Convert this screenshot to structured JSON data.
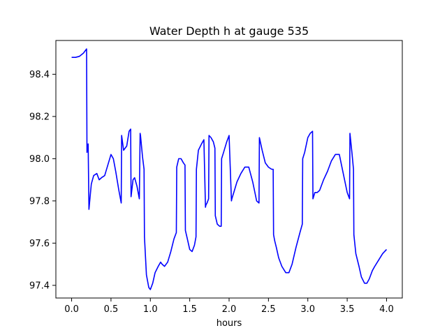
{
  "chart_data": {
    "type": "line",
    "title": "Water Depth h at gauge 535",
    "xlabel": "hours",
    "ylabel": "",
    "xlim": [
      -0.2,
      4.2
    ],
    "ylim": [
      97.34,
      98.56
    ],
    "xticks": [
      0.0,
      0.5,
      1.0,
      1.5,
      2.0,
      2.5,
      3.0,
      3.5,
      4.0
    ],
    "xtick_labels": [
      "0.0",
      "0.5",
      "1.0",
      "1.5",
      "2.0",
      "2.5",
      "3.0",
      "3.5",
      "4.0"
    ],
    "yticks": [
      97.4,
      97.6,
      97.8,
      98.0,
      98.2,
      98.4
    ],
    "ytick_labels": [
      "97.4",
      "97.6",
      "97.8",
      "98.0",
      "98.2",
      "98.4"
    ],
    "grid": false,
    "legend": "none",
    "series": [
      {
        "color": "#0000ff",
        "x": [
          0.0,
          0.05,
          0.1,
          0.15,
          0.19,
          0.195,
          0.2,
          0.21,
          0.22,
          0.25,
          0.28,
          0.32,
          0.35,
          0.38,
          0.42,
          0.46,
          0.5,
          0.53,
          0.56,
          0.6,
          0.63,
          0.635,
          0.66,
          0.7,
          0.73,
          0.75,
          0.755,
          0.78,
          0.8,
          0.83,
          0.86,
          0.87,
          0.875,
          0.9,
          0.92,
          0.925,
          0.95,
          0.98,
          1.0,
          1.03,
          1.06,
          1.1,
          1.13,
          1.15,
          1.18,
          1.22,
          1.26,
          1.3,
          1.33,
          1.335,
          1.36,
          1.39,
          1.42,
          1.44,
          1.445,
          1.47,
          1.5,
          1.53,
          1.56,
          1.58,
          1.585,
          1.61,
          1.65,
          1.68,
          1.7,
          1.705,
          1.72,
          1.74,
          1.745,
          1.77,
          1.8,
          1.82,
          1.825,
          1.85,
          1.88,
          1.9,
          1.905,
          1.93,
          1.97,
          2.0,
          2.03,
          2.035,
          2.06,
          2.1,
          2.15,
          2.2,
          2.25,
          2.3,
          2.35,
          2.38,
          2.385,
          2.42,
          2.46,
          2.5,
          2.54,
          2.56,
          2.565,
          2.58,
          2.6,
          2.63,
          2.67,
          2.72,
          2.76,
          2.8,
          2.85,
          2.9,
          2.93,
          2.935,
          2.96,
          3.0,
          3.03,
          3.06,
          3.065,
          3.09,
          3.12,
          3.15,
          3.2,
          3.25,
          3.3,
          3.35,
          3.4,
          3.45,
          3.5,
          3.53,
          3.535,
          3.56,
          3.58,
          3.585,
          3.61,
          3.65,
          3.68,
          3.72,
          3.75,
          3.78,
          3.82,
          3.85,
          3.9,
          3.95,
          4.0
        ],
        "y": [
          98.48,
          98.48,
          98.485,
          98.5,
          98.52,
          98.03,
          98.06,
          98.07,
          97.76,
          97.88,
          97.92,
          97.93,
          97.9,
          97.91,
          97.92,
          97.97,
          98.02,
          98.0,
          97.94,
          97.85,
          97.79,
          98.11,
          98.04,
          98.06,
          98.13,
          98.14,
          97.82,
          97.9,
          97.91,
          97.87,
          97.81,
          98.12,
          98.11,
          98.01,
          97.95,
          97.63,
          97.45,
          97.39,
          97.38,
          97.41,
          97.46,
          97.49,
          97.51,
          97.5,
          97.49,
          97.51,
          97.56,
          97.62,
          97.65,
          97.96,
          98.0,
          98.0,
          97.98,
          97.97,
          97.66,
          97.62,
          97.57,
          97.56,
          97.59,
          97.63,
          97.95,
          98.04,
          98.07,
          98.09,
          97.77,
          97.78,
          97.79,
          97.81,
          98.11,
          98.1,
          98.08,
          98.05,
          97.73,
          97.69,
          97.68,
          97.68,
          98.0,
          98.03,
          98.08,
          98.11,
          97.8,
          97.81,
          97.84,
          97.89,
          97.93,
          97.96,
          97.96,
          97.89,
          97.8,
          97.79,
          98.1,
          98.04,
          97.98,
          97.96,
          97.95,
          97.95,
          97.64,
          97.61,
          97.58,
          97.53,
          97.49,
          97.46,
          97.46,
          97.5,
          97.58,
          97.65,
          97.69,
          98.0,
          98.03,
          98.1,
          98.12,
          98.13,
          97.81,
          97.84,
          97.84,
          97.85,
          97.9,
          97.94,
          97.99,
          98.02,
          98.02,
          97.93,
          97.84,
          97.81,
          98.12,
          98.03,
          97.95,
          97.64,
          97.55,
          97.49,
          97.44,
          97.41,
          97.41,
          97.43,
          97.47,
          97.49,
          97.52,
          97.55,
          97.57
        ]
      }
    ]
  }
}
